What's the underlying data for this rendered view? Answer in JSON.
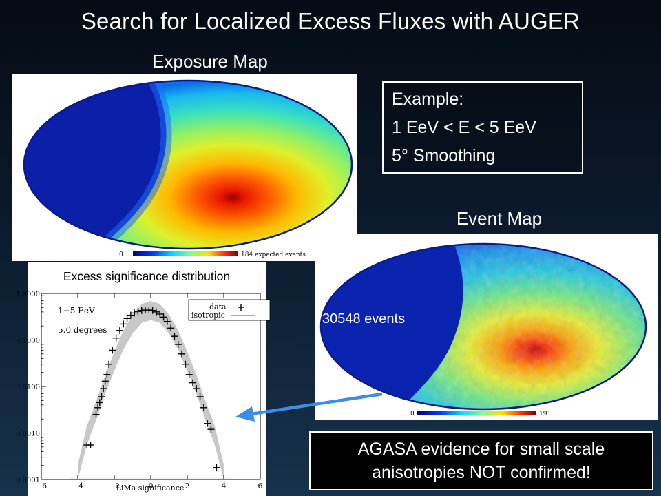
{
  "slide": {
    "title": "Search for Localized Excess Fluxes with AUGER"
  },
  "exposure_map": {
    "label": "Exposure Map",
    "colorbar_min": "0",
    "colorbar_max": "184 expected events"
  },
  "example_box": {
    "line1": "Example:",
    "line2": "1 EeV < E < 5 EeV",
    "line3": "5° Smoothing"
  },
  "event_map": {
    "label": "Event Map",
    "events_count": "30548 events",
    "colorbar_min": "0",
    "colorbar_max": "191"
  },
  "distribution": {
    "title": "Excess significance distribution",
    "legend_energy": "1−5 EeV",
    "legend_degrees": "5.0 degrees",
    "legend_data": "data",
    "legend_isotropic": "isotropic",
    "xlabel": "LiMa significance"
  },
  "conclusion": {
    "line1": "AGASA evidence for small scale",
    "line2": "anisotropies NOT confirmed!"
  },
  "chart_data": {
    "type": "scatter",
    "title": "Excess significance distribution",
    "xlabel": "LiMa significance",
    "ylabel": "",
    "yscale": "log",
    "xlim": [
      -6,
      6
    ],
    "ylim": [
      0.0001,
      1.0
    ],
    "x_ticks": [
      "−6",
      "−4",
      "−2",
      "0",
      "2",
      "4",
      "6"
    ],
    "y_ticks": [
      "1.0000",
      "0.1000",
      "0.0100",
      "0.0010",
      "0.0001"
    ],
    "legend_position": "top-right",
    "series": [
      {
        "name": "data",
        "marker": "+",
        "x": [
          -3.5,
          -3.3,
          -3.0,
          -2.9,
          -2.8,
          -2.7,
          -2.6,
          -2.5,
          -2.4,
          -2.3,
          -2.1,
          -1.9,
          -1.7,
          -1.5,
          -1.3,
          -1.1,
          -0.9,
          -0.7,
          -0.5,
          -0.3,
          -0.1,
          0.1,
          0.3,
          0.5,
          0.7,
          0.9,
          1.1,
          1.3,
          1.5,
          1.7,
          1.9,
          2.1,
          2.3,
          2.5,
          2.7,
          2.9,
          3.1,
          3.3,
          3.6
        ],
        "y": [
          0.00055,
          0.00055,
          0.0025,
          0.0035,
          0.0045,
          0.006,
          0.009,
          0.013,
          0.018,
          0.03,
          0.06,
          0.11,
          0.16,
          0.22,
          0.29,
          0.34,
          0.38,
          0.41,
          0.43,
          0.44,
          0.44,
          0.43,
          0.4,
          0.36,
          0.31,
          0.25,
          0.18,
          0.12,
          0.08,
          0.05,
          0.03,
          0.018,
          0.012,
          0.009,
          0.006,
          0.0035,
          0.0016,
          0.0012,
          0.00018
        ]
      },
      {
        "name": "isotropic",
        "type": "band",
        "x": [
          -4.0,
          -3.5,
          -3.0,
          -2.5,
          -2.0,
          -1.5,
          -1.0,
          -0.5,
          0,
          0.5,
          1.0,
          1.5,
          2.0,
          2.5,
          3.0,
          3.5,
          4.0
        ],
        "y": [
          0.00013,
          0.0009,
          0.003,
          0.011,
          0.035,
          0.1,
          0.22,
          0.37,
          0.43,
          0.37,
          0.22,
          0.1,
          0.035,
          0.011,
          0.003,
          0.0009,
          0.00013
        ]
      }
    ]
  }
}
